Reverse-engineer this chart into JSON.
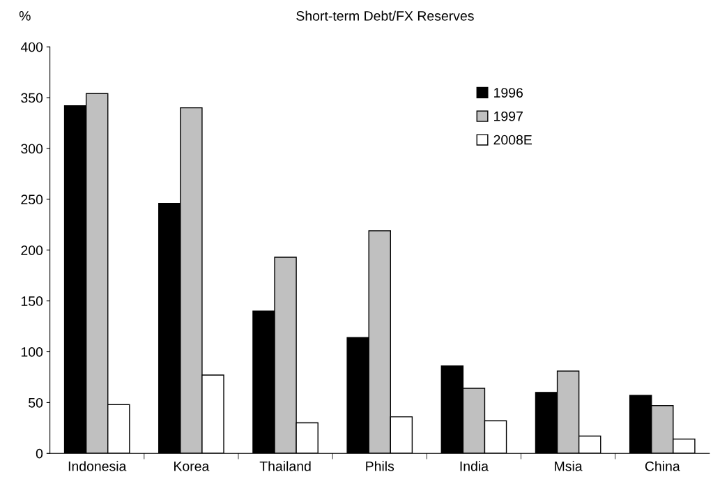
{
  "chart_data": {
    "type": "bar",
    "title": "Short-term Debt/FX Reserves",
    "ylabel": "%",
    "categories": [
      "Indonesia",
      "Korea",
      "Thailand",
      "Phils",
      "India",
      "Msia",
      "China"
    ],
    "series": [
      {
        "name": "1996",
        "color": "#000000",
        "values": [
          342,
          246,
          140,
          114,
          86,
          60,
          57
        ]
      },
      {
        "name": "1997",
        "color": "#c0c0c0",
        "values": [
          354,
          340,
          193,
          219,
          64,
          81,
          47
        ]
      },
      {
        "name": "2008E",
        "color": "#ffffff",
        "values": [
          48,
          77,
          30,
          36,
          32,
          17,
          14
        ]
      }
    ],
    "ylim": [
      0,
      400
    ],
    "yticks": [
      0,
      50,
      100,
      150,
      200,
      250,
      300,
      350,
      400
    ],
    "grid": false,
    "legend": "top right"
  }
}
